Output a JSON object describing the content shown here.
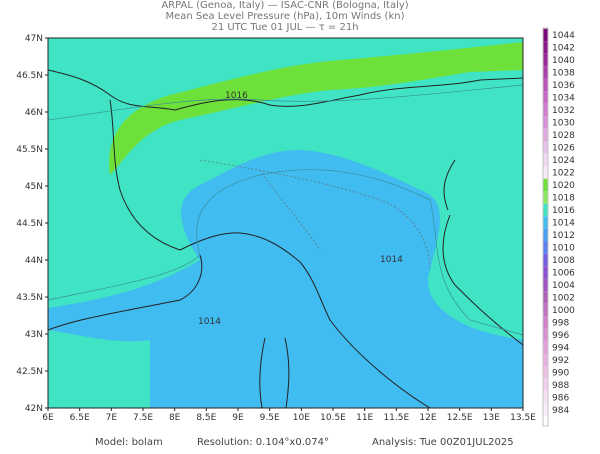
{
  "header": {
    "lines": [
      "ARPAL (Genoa, Italy)  —  ISAC-CNR (Bologna, Italy)",
      "Mean Sea Level Pressure (hPa), 10m Winds (kn)",
      "21 UTC Tue 01 JUL  —  τ = 21h"
    ]
  },
  "map": {
    "lat_labels": [
      "47N",
      "46.5N",
      "46N",
      "45.5N",
      "45N",
      "44.5N",
      "44N",
      "43.5N",
      "43N",
      "42.5N",
      "42N"
    ],
    "lon_labels": [
      "6E",
      "6.5E",
      "7E",
      "7.5E",
      "8E",
      "8.5E",
      "9E",
      "9.5E",
      "10E",
      "10.5E",
      "11E",
      "11.5E",
      "12E",
      "12.5E",
      "13E",
      "13.5E"
    ],
    "isobar_labels": [
      "1016",
      "1014",
      "1014"
    ]
  },
  "colorbar": {
    "labels": [
      "1044",
      "1042",
      "1040",
      "1038",
      "1036",
      "1034",
      "1032",
      "1030",
      "1028",
      "1026",
      "1024",
      "1022",
      "1020",
      "1018",
      "1016",
      "1014",
      "1012",
      "1010",
      "1008",
      "1006",
      "1004",
      "1002",
      "1000",
      "998",
      "996",
      "994",
      "992",
      "990",
      "988",
      "986",
      "984"
    ]
  },
  "footer": {
    "model": "Model: bolam",
    "resolution": "Resolution: 0.104°x0.074°",
    "analysis": "Analysis: Tue 00Z01JUL2025"
  }
}
